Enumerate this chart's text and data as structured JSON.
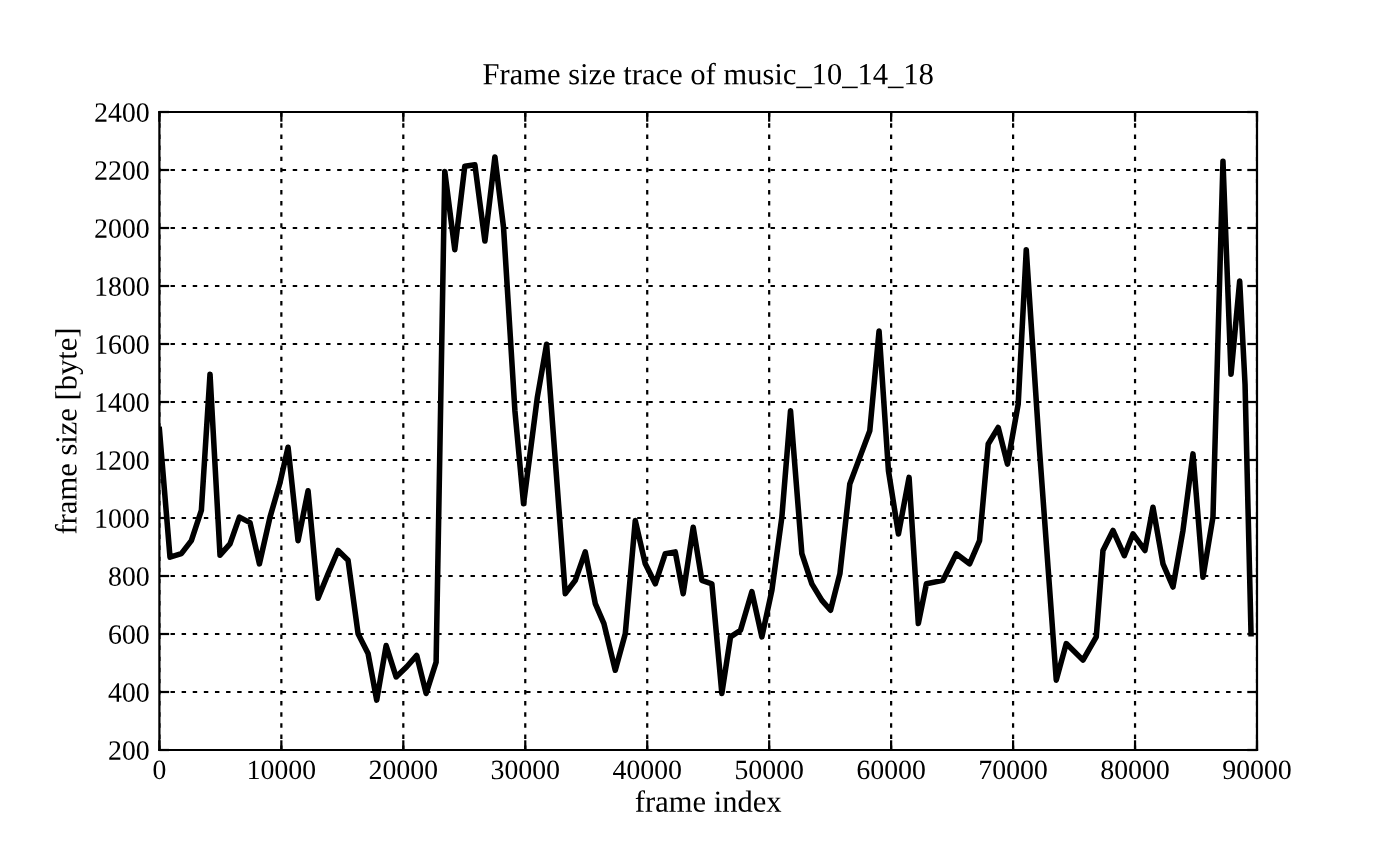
{
  "chart_data": {
    "type": "line",
    "title": "Frame size trace of music_10_14_18",
    "xlabel": "frame index",
    "ylabel": "frame size [byte]",
    "x": [
      0,
      870,
      1800,
      2620,
      3440,
      4150,
      4970,
      5790,
      6560,
      7430,
      8200,
      9070,
      9890,
      10550,
      11370,
      12190,
      13010,
      13830,
      14650,
      15470,
      16290,
      17110,
      17820,
      18590,
      19410,
      20280,
      21100,
      21870,
      22690,
      23400,
      24220,
      25040,
      25870,
      26690,
      27510,
      28220,
      29150,
      29860,
      30990,
      31750,
      33280,
      34100,
      34920,
      35740,
      36450,
      37380,
      38200,
      39020,
      39840,
      40660,
      41480,
      42300,
      42950,
      43770,
      44480,
      45300,
      46120,
      46830,
      47650,
      48580,
      49400,
      50220,
      51040,
      51750,
      52680,
      53500,
      54320,
      55030,
      55800,
      56610,
      57430,
      58250,
      59010,
      59780,
      60600,
      61470,
      62230,
      62890,
      64250,
      65340,
      66430,
      67250,
      67960,
      68780,
      69540,
      70420,
      71080,
      72170,
      73540,
      74360,
      75730,
      76820,
      77370,
      78190,
      79120,
      79830,
      80810,
      81470,
      82290,
      83110,
      83930,
      84750,
      85570,
      86390,
      87210,
      87870,
      88580,
      89020,
      89510
    ],
    "series": [
      {
        "color": "#000000",
        "values": [
          1305,
          865,
          877,
          922,
          1026,
          1496,
          872,
          911,
          1003,
          984,
          842,
          1003,
          1122,
          1244,
          922,
          1094,
          723,
          808,
          888,
          854,
          601,
          533,
          372,
          560,
          452,
          487,
          526,
          395,
          503,
          2195,
          1925,
          2213,
          2218,
          1955,
          2245,
          2001,
          1370,
          1049,
          1416,
          1599,
          739,
          785,
          883,
          705,
          636,
          475,
          601,
          991,
          842,
          773,
          877,
          883,
          739,
          968,
          785,
          773,
          395,
          590,
          613,
          746,
          590,
          750,
          1003,
          1370,
          877,
          773,
          716,
          682,
          808,
          1117,
          1209,
          1301,
          1645,
          1163,
          945,
          1140,
          636,
          773,
          785,
          877,
          842,
          922,
          1255,
          1312,
          1186,
          1393,
          1925,
          1232,
          441,
          567,
          510,
          590,
          888,
          957,
          870,
          945,
          888,
          1037,
          842,
          762,
          957,
          1221,
          796,
          1003,
          2230,
          1496,
          1817,
          1461,
          601
        ]
      }
    ],
    "xlim": [
      0,
      90000
    ],
    "xticks": [
      0,
      10000,
      20000,
      30000,
      40000,
      50000,
      60000,
      70000,
      80000,
      90000
    ],
    "ylim": [
      200,
      2400
    ],
    "yticks": [
      200,
      400,
      600,
      800,
      1000,
      1200,
      1400,
      1600,
      1800,
      2000,
      2200,
      2400
    ],
    "grid": true,
    "legend": false,
    "marker": "none",
    "line_style": "solid"
  }
}
